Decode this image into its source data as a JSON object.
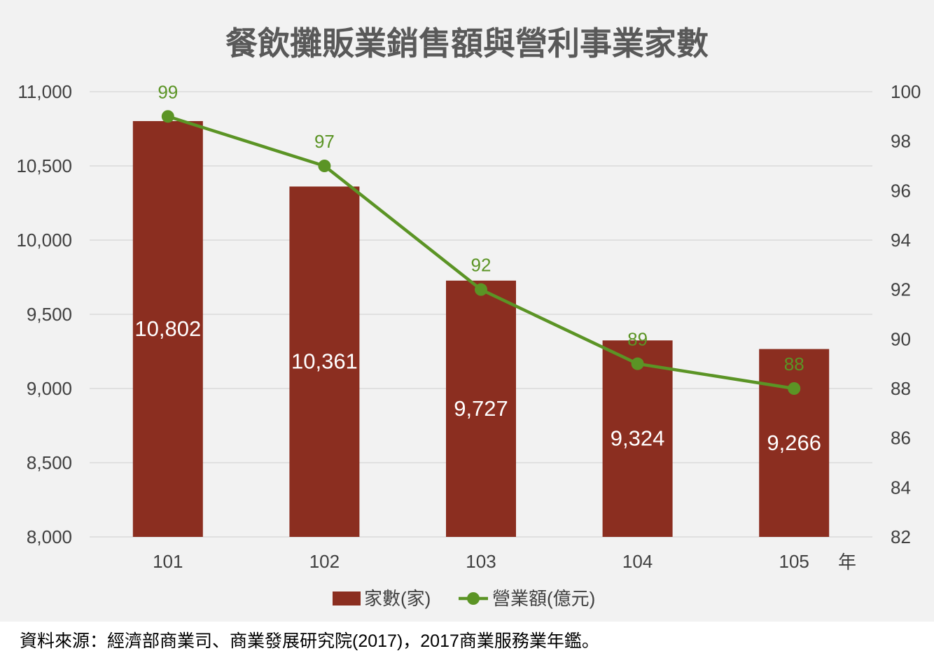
{
  "chart_data": {
    "type": "bar+line",
    "title": "餐飲攤販業銷售額與營利事業家數",
    "categories": [
      "101",
      "102",
      "103",
      "104",
      "105"
    ],
    "x_unit_label": "年",
    "series": [
      {
        "name": "家數(家)",
        "type": "bar",
        "axis": "left",
        "values": [
          10802,
          10361,
          9727,
          9324,
          9266
        ],
        "value_labels": [
          "10,802",
          "10,361",
          "9,727",
          "9,324",
          "9,266"
        ],
        "color": "#8b2e20",
        "label_color": "#ffffff"
      },
      {
        "name": "營業額(億元)",
        "type": "line",
        "axis": "right",
        "values": [
          99,
          97,
          92,
          89,
          88
        ],
        "value_labels": [
          "99",
          "97",
          "92",
          "89",
          "88"
        ],
        "color": "#5b9425",
        "label_color": "#5b9425"
      }
    ],
    "y_left": {
      "range": [
        8000,
        11000
      ],
      "ticks": [
        8000,
        8500,
        9000,
        9500,
        10000,
        10500,
        11000
      ],
      "tick_labels": [
        "8,000",
        "8,500",
        "9,000",
        "9,500",
        "10,000",
        "10,500",
        "11,000"
      ]
    },
    "y_right": {
      "range": [
        82,
        100
      ],
      "ticks": [
        82,
        84,
        86,
        88,
        90,
        92,
        94,
        96,
        98,
        100
      ],
      "tick_labels": [
        "82",
        "84",
        "86",
        "88",
        "90",
        "92",
        "94",
        "96",
        "98",
        "100"
      ]
    },
    "grid": true,
    "legend_position": "bottom"
  },
  "source_note": "資料來源：經濟部商業司、商業發展研究院(2017)，2017商業服務業年鑑。",
  "colors": {
    "background": "#f2f2f2",
    "gridline": "#d9d9d9",
    "axis_text": "#404040",
    "title_text": "#595959"
  }
}
